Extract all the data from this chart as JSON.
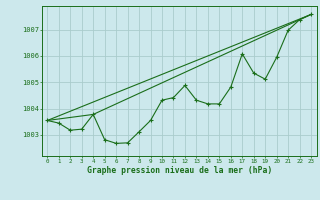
{
  "background_color": "#cce8ec",
  "grid_color": "#aacccc",
  "line_color": "#1a6e1a",
  "title": "Graphe pression niveau de la mer (hPa)",
  "ylim": [
    1002.2,
    1007.9
  ],
  "yticks": [
    1003,
    1004,
    1005,
    1006,
    1007
  ],
  "series1_x": [
    0,
    1,
    2,
    3,
    4,
    5,
    6,
    7,
    8,
    9,
    10,
    11,
    12,
    13,
    14,
    15,
    16,
    17,
    18,
    19,
    20,
    21,
    22,
    23
  ],
  "series1_y": [
    1003.55,
    1003.45,
    1003.18,
    1003.22,
    1003.78,
    1002.82,
    1002.68,
    1002.7,
    1003.12,
    1003.55,
    1004.32,
    1004.42,
    1004.88,
    1004.32,
    1004.18,
    1004.18,
    1004.82,
    1006.08,
    1005.35,
    1005.12,
    1005.95,
    1006.98,
    1007.38,
    1007.58
  ],
  "trend1_x": [
    0,
    23
  ],
  "trend1_y": [
    1003.55,
    1007.58
  ],
  "trend2_x": [
    0,
    4,
    23
  ],
  "trend2_y": [
    1003.55,
    1003.78,
    1007.58
  ],
  "xlabel_ticks": [
    0,
    1,
    2,
    3,
    4,
    5,
    6,
    7,
    8,
    9,
    10,
    11,
    12,
    13,
    14,
    15,
    16,
    17,
    18,
    19,
    20,
    21,
    22,
    23
  ]
}
